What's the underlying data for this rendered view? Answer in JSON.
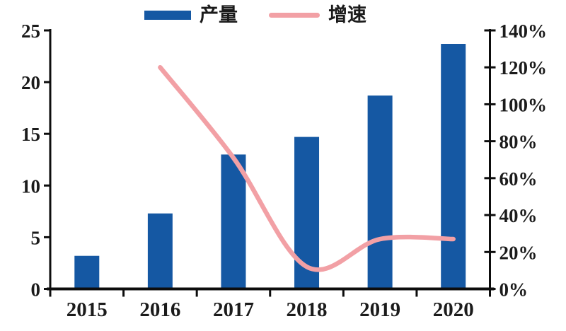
{
  "legend": {
    "items": [
      {
        "label": "产量",
        "swatch": "bar-swatch"
      },
      {
        "label": "增速",
        "swatch": "line-swatch"
      }
    ]
  },
  "colors": {
    "bar": "#1558A3",
    "line": "#F2A0A5",
    "axis": "#0d0d0d",
    "text": "#1b1b1b",
    "background": "#ffffff"
  },
  "chart_data": {
    "type": "combo",
    "categories": [
      "2015",
      "2016",
      "2017",
      "2018",
      "2019",
      "2020"
    ],
    "series": [
      {
        "name": "产量",
        "type": "bar",
        "axis": "left",
        "values": [
          3.2,
          7.3,
          13.0,
          14.7,
          18.7,
          23.7
        ]
      },
      {
        "name": "增速",
        "type": "line",
        "axis": "right",
        "values": [
          null,
          120,
          71,
          12,
          27,
          27
        ],
        "unit": "%"
      }
    ],
    "left_axis": {
      "min": 0,
      "max": 25,
      "ticks": [
        0,
        5,
        10,
        15,
        20,
        25
      ]
    },
    "right_axis": {
      "min": 0,
      "max": 140,
      "ticks": [
        "0%",
        "20%",
        "40%",
        "60%",
        "80%",
        "100%",
        "120%",
        "140%"
      ],
      "tick_values": [
        0,
        20,
        40,
        60,
        80,
        100,
        120,
        140
      ]
    },
    "grid": false,
    "legend_position": "top-center",
    "title": "",
    "xlabel": "",
    "ylabel_left": "",
    "ylabel_right": ""
  }
}
